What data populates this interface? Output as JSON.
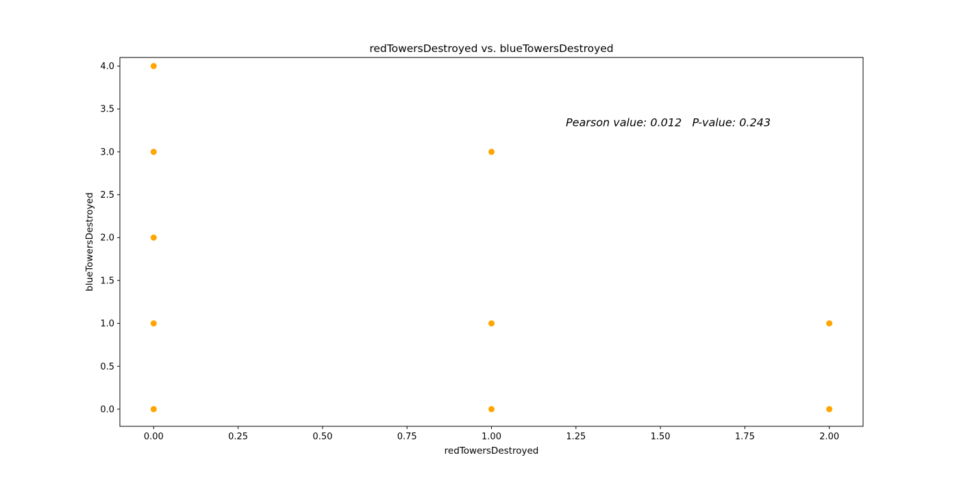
{
  "chart_data": {
    "type": "scatter",
    "title": "redTowersDestroyed vs. blueTowersDestroyed",
    "xlabel": "redTowersDestroyed",
    "ylabel": "blueTowersDestroyed",
    "xlim": [
      -0.1,
      2.1
    ],
    "ylim": [
      -0.2,
      4.1
    ],
    "xticks": [
      0.0,
      0.25,
      0.5,
      0.75,
      1.0,
      1.25,
      1.5,
      1.75,
      2.0
    ],
    "xtick_labels": [
      "0.00",
      "0.25",
      "0.50",
      "0.75",
      "1.00",
      "1.25",
      "1.50",
      "1.75",
      "2.00"
    ],
    "yticks": [
      0.0,
      0.5,
      1.0,
      1.5,
      2.0,
      2.5,
      3.0,
      3.5,
      4.0
    ],
    "ytick_labels": [
      "0.0",
      "0.5",
      "1.0",
      "1.5",
      "2.0",
      "2.5",
      "3.0",
      "3.5",
      "4.0"
    ],
    "grid": false,
    "marker_color": "#ffa500",
    "points": [
      {
        "x": 0,
        "y": 4
      },
      {
        "x": 0,
        "y": 3
      },
      {
        "x": 0,
        "y": 2
      },
      {
        "x": 0,
        "y": 1
      },
      {
        "x": 0,
        "y": 0
      },
      {
        "x": 1,
        "y": 3
      },
      {
        "x": 1,
        "y": 1
      },
      {
        "x": 1,
        "y": 0
      },
      {
        "x": 2,
        "y": 1
      },
      {
        "x": 2,
        "y": 0
      }
    ],
    "annotation": "Pearson value: 0.012   P-value: 0.243",
    "annotation_position": {
      "x": 1.22,
      "y": 3.3
    }
  }
}
